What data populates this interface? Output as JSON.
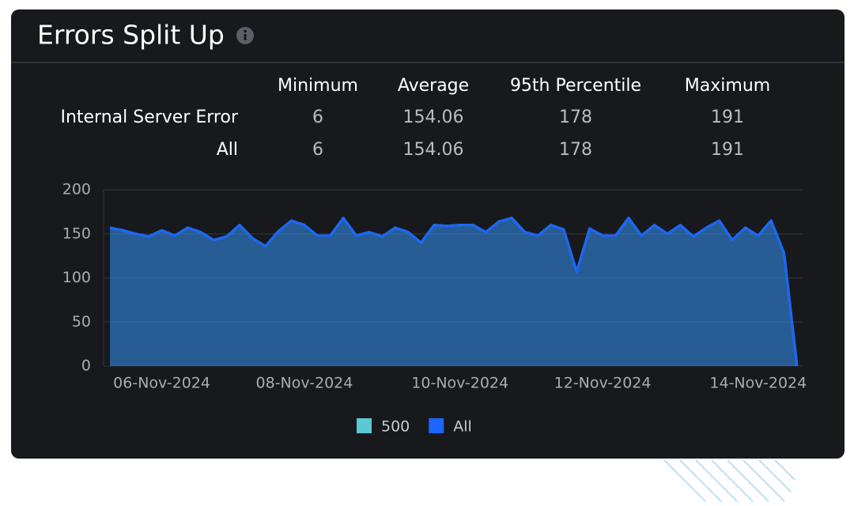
{
  "header": {
    "title": "Errors Split Up"
  },
  "table": {
    "columns": [
      "Minimum",
      "Average",
      "95th Percentile",
      "Maximum"
    ],
    "rows": [
      {
        "label": "Internal Server Error",
        "values": [
          6,
          154.06,
          178,
          191
        ]
      },
      {
        "label": "All",
        "values": [
          6,
          154.06,
          178,
          191
        ]
      }
    ]
  },
  "chart_data": {
    "type": "area",
    "categories": [
      null,
      null,
      null,
      null,
      "06-Nov-2024",
      null,
      null,
      null,
      null,
      null,
      null,
      null,
      null,
      null,
      null,
      "08-Nov-2024",
      null,
      null,
      null,
      null,
      null,
      null,
      null,
      null,
      null,
      null,
      null,
      "10-Nov-2024",
      null,
      null,
      null,
      null,
      null,
      null,
      null,
      null,
      null,
      null,
      "12-Nov-2024",
      null,
      null,
      null,
      null,
      null,
      null,
      null,
      null,
      null,
      null,
      null,
      "14-Nov-2024",
      null,
      null,
      null
    ],
    "series": [
      {
        "name": "500",
        "color": "#5bc8d4",
        "values": [
          157,
          154,
          150,
          147,
          154,
          148,
          157,
          152,
          143,
          147,
          160,
          145,
          136,
          153,
          165,
          160,
          148,
          148,
          168,
          148,
          152,
          147,
          157,
          152,
          140,
          160,
          159,
          160,
          160,
          152,
          164,
          168,
          152,
          148,
          160,
          155,
          107,
          156,
          148,
          148,
          168,
          148,
          160,
          150,
          160,
          147,
          157,
          165,
          143,
          157,
          148,
          165,
          128,
          0
        ]
      },
      {
        "name": "All",
        "color": "#1a66ff",
        "values": [
          157,
          154,
          150,
          147,
          154,
          148,
          157,
          152,
          143,
          147,
          160,
          145,
          136,
          153,
          165,
          160,
          148,
          148,
          168,
          148,
          152,
          147,
          157,
          152,
          140,
          160,
          159,
          160,
          160,
          152,
          164,
          168,
          152,
          148,
          160,
          155,
          107,
          156,
          148,
          148,
          168,
          148,
          160,
          150,
          160,
          147,
          157,
          165,
          143,
          157,
          148,
          165,
          128,
          0
        ]
      }
    ],
    "ylim": [
      0,
      200
    ],
    "yticks": [
      0,
      50,
      100,
      150,
      200
    ],
    "grid": true
  }
}
